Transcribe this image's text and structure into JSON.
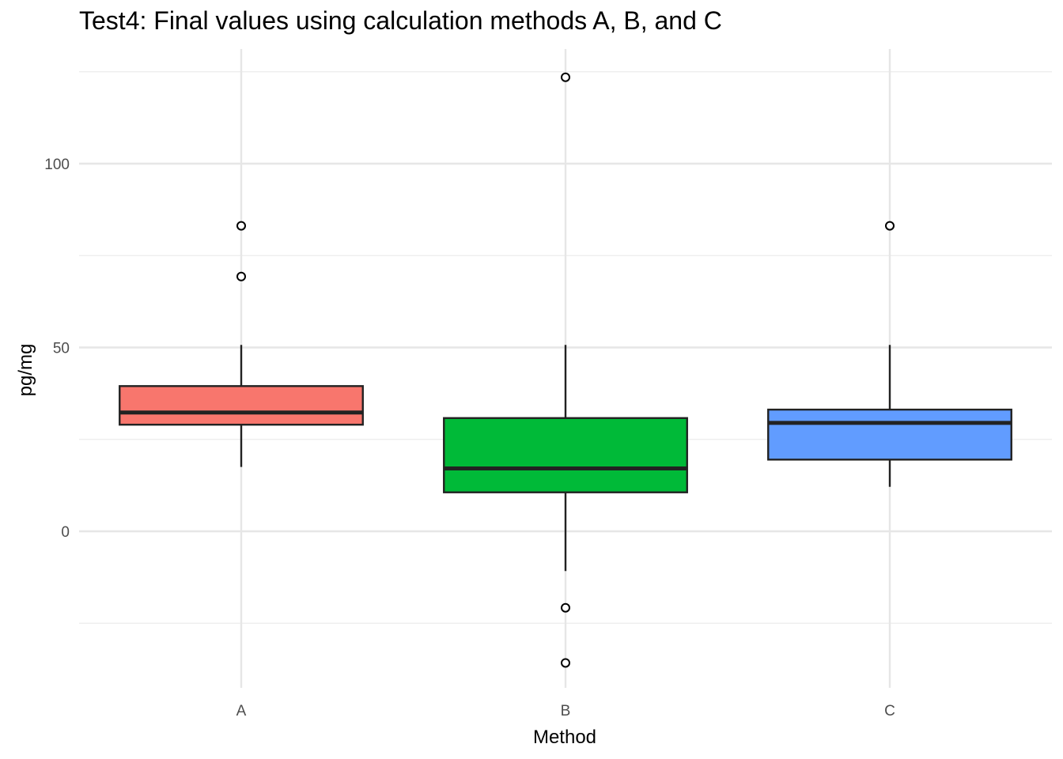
{
  "chart_data": {
    "type": "boxplot",
    "title": "Test4: Final values using calculation methods A, B, and C",
    "xlabel": "Method",
    "ylabel": "pg/mg",
    "categories": [
      "A",
      "B",
      "C"
    ],
    "ylim": [
      -43,
      125
    ],
    "y_ticks": [
      0,
      50,
      100
    ],
    "y_tick_labels": [
      "0",
      "50",
      "100"
    ],
    "grid": true,
    "legend": "none",
    "boxes": [
      {
        "category": "A",
        "whisker_low": 17.5,
        "q1": 29.0,
        "median": 32.3,
        "q3": 39.5,
        "whisker_high": 50.7,
        "outliers": [
          69.3,
          83.1
        ],
        "color": "#F8766D"
      },
      {
        "category": "B",
        "whisker_low": -10.8,
        "q1": 10.6,
        "median": 17.1,
        "q3": 30.8,
        "whisker_high": 50.7,
        "outliers": [
          -20.8,
          -35.8,
          123.5
        ],
        "color": "#00BA38"
      },
      {
        "category": "C",
        "whisker_low": 12.1,
        "q1": 19.5,
        "median": 29.5,
        "q3": 33.1,
        "whisker_high": 50.7,
        "outliers": [
          83.1
        ],
        "color": "#619CFF"
      }
    ]
  }
}
